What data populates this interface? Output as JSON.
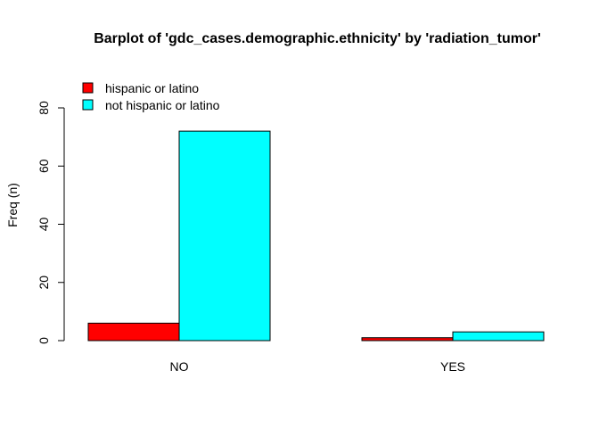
{
  "chart_data": {
    "type": "bar",
    "title": "Barplot of 'gdc_cases.demographic.ethnicity' by 'radiation_tumor'",
    "xlabel": "",
    "ylabel": "Freq (n)",
    "categories": [
      "NO",
      "YES"
    ],
    "series": [
      {
        "name": "hispanic or latino",
        "values": [
          6,
          1
        ],
        "color": "#ff0000"
      },
      {
        "name": "not hispanic or latino",
        "values": [
          72,
          3
        ],
        "color": "#00ffff"
      }
    ],
    "ylim": [
      0,
      80
    ],
    "yticks": [
      0,
      20,
      40,
      60,
      80
    ],
    "grid": false,
    "legend_position": "top-left",
    "bar_border_color": "#000000",
    "axis_color": "#000000"
  }
}
